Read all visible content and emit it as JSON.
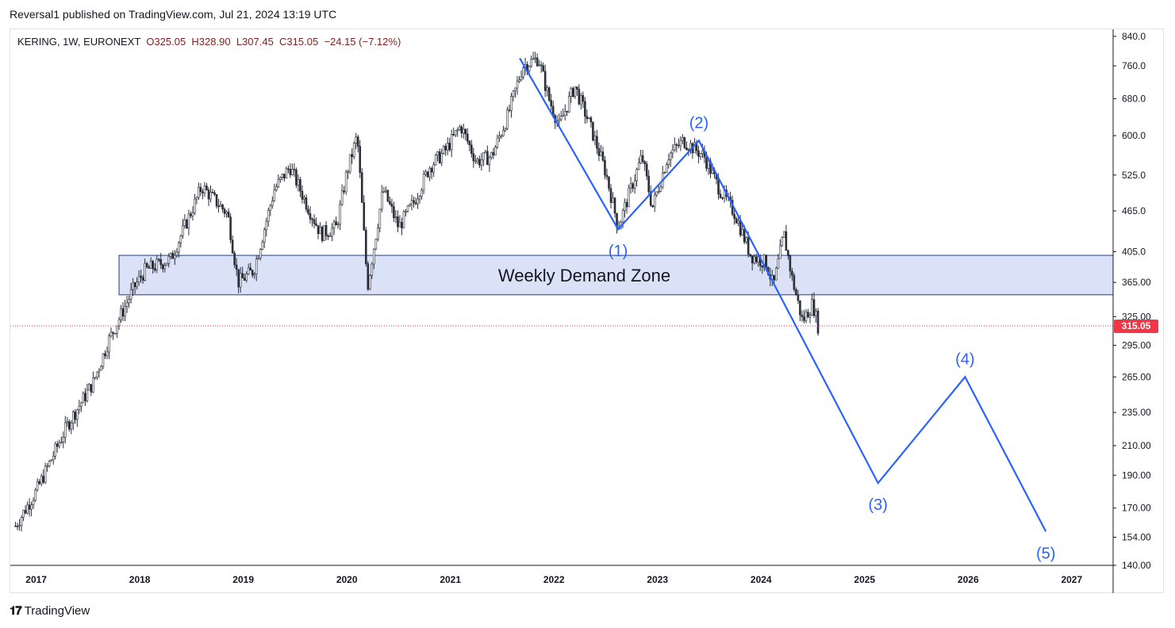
{
  "header": {
    "published": "Reversal1 published on TradingView.com, Jul 21, 2024 13:19 UTC"
  },
  "legend": {
    "symbol": "KERING, 1W, EURONEXT",
    "open": "O325.05",
    "high": "H328.90",
    "low": "L307.45",
    "close": "C315.05",
    "change": "−24.15 (−7.12%)"
  },
  "footer": {
    "brand": "TradingView"
  },
  "colors": {
    "candle": "#2a2e39",
    "wave": "#2962ff",
    "zone_fill": "#d5dcf5",
    "zone_border": "#1e3d8a",
    "price_line": "#f23645",
    "last_price_badge": "#f23645"
  },
  "chart_data": {
    "type": "candlestick",
    "symbol": "KERING",
    "interval": "1W",
    "exchange": "EURONEXT",
    "y_scale": "log",
    "ylim": [
      140,
      860
    ],
    "xlim": [
      2016.75,
      2027.4
    ],
    "x_ticks": [
      "2017",
      "2018",
      "2019",
      "2020",
      "2021",
      "2022",
      "2023",
      "2024",
      "2025",
      "2026",
      "2027"
    ],
    "y_ticks": [
      "840.0",
      "760.0",
      "680.0",
      "600.0",
      "525.0",
      "465.0",
      "405.0",
      "365.00",
      "325.00",
      "295.00",
      "265.00",
      "235.00",
      "210.00",
      "190.00",
      "170.00",
      "154.00",
      "140.00"
    ],
    "last_price": "315.05",
    "price_anchors": [
      [
        2016.8,
        160
      ],
      [
        2017.0,
        180
      ],
      [
        2017.3,
        225
      ],
      [
        2017.55,
        260
      ],
      [
        2017.7,
        300
      ],
      [
        2017.95,
        360
      ],
      [
        2018.05,
        380
      ],
      [
        2018.3,
        395
      ],
      [
        2018.6,
        505
      ],
      [
        2018.85,
        460
      ],
      [
        2018.95,
        365
      ],
      [
        2019.1,
        380
      ],
      [
        2019.3,
        500
      ],
      [
        2019.45,
        540
      ],
      [
        2019.6,
        480
      ],
      [
        2019.75,
        430
      ],
      [
        2019.9,
        440
      ],
      [
        2020.0,
        530
      ],
      [
        2020.1,
        600
      ],
      [
        2020.2,
        360
      ],
      [
        2020.35,
        500
      ],
      [
        2020.5,
        440
      ],
      [
        2020.65,
        480
      ],
      [
        2020.8,
        540
      ],
      [
        2020.95,
        570
      ],
      [
        2021.1,
        620
      ],
      [
        2021.25,
        550
      ],
      [
        2021.4,
        560
      ],
      [
        2021.55,
        640
      ],
      [
        2021.7,
        760
      ],
      [
        2021.85,
        780
      ],
      [
        2021.95,
        680
      ],
      [
        2022.05,
        620
      ],
      [
        2022.2,
        710
      ],
      [
        2022.35,
        620
      ],
      [
        2022.5,
        530
      ],
      [
        2022.62,
        440
      ],
      [
        2022.75,
        505
      ],
      [
        2022.85,
        560
      ],
      [
        2022.95,
        470
      ],
      [
        2023.1,
        560
      ],
      [
        2023.25,
        590
      ],
      [
        2023.45,
        560
      ],
      [
        2023.6,
        500
      ],
      [
        2023.75,
        460
      ],
      [
        2023.9,
        400
      ],
      [
        2024.05,
        390
      ],
      [
        2024.12,
        360
      ],
      [
        2024.22,
        430
      ],
      [
        2024.3,
        370
      ],
      [
        2024.4,
        320
      ],
      [
        2024.5,
        340
      ],
      [
        2024.55,
        315
      ]
    ],
    "annotations": {
      "zone": {
        "label": "Weekly Demand Zone",
        "x_start": 2017.8,
        "x_end": 2027.4,
        "y_low": 350,
        "y_high": 400
      },
      "wave_path": [
        [
          2021.67,
          780
        ],
        [
          2022.62,
          437
        ],
        [
          2023.4,
          590
        ],
        [
          2025.13,
          185
        ],
        [
          2025.97,
          265
        ],
        [
          2026.75,
          157
        ]
      ],
      "wave_labels": [
        {
          "text": "(1)",
          "x": 2022.62,
          "y": 437,
          "position": "below"
        },
        {
          "text": "(2)",
          "x": 2023.4,
          "y": 590,
          "position": "above"
        },
        {
          "text": "(3)",
          "x": 2025.13,
          "y": 185,
          "position": "below"
        },
        {
          "text": "(4)",
          "x": 2025.97,
          "y": 265,
          "position": "above"
        },
        {
          "text": "(5)",
          "x": 2026.75,
          "y": 157,
          "position": "below"
        }
      ]
    }
  }
}
